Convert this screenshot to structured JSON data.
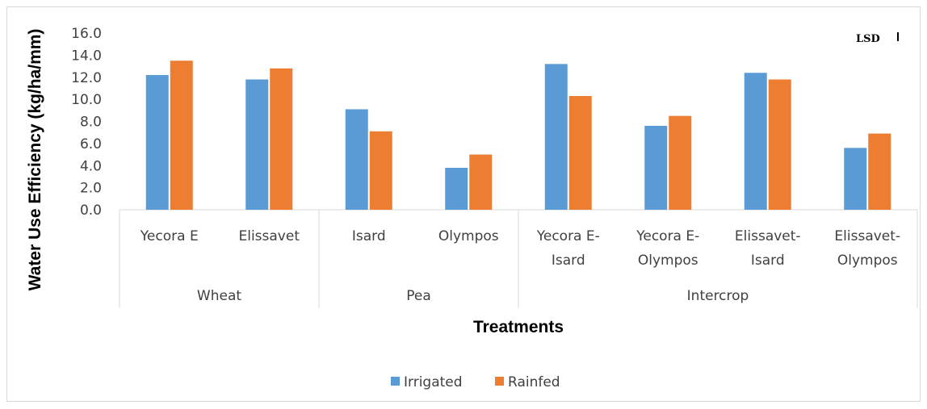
{
  "chart_data": {
    "type": "bar",
    "ylabel": "Water Use Efficiency (kg/ha/mm)",
    "xlabel": "Treatments",
    "ylim": [
      0,
      16
    ],
    "yticks": [
      "0.0",
      "2.0",
      "4.0",
      "6.0",
      "8.0",
      "10.0",
      "12.0",
      "14.0",
      "16.0"
    ],
    "groups": [
      {
        "name": "Wheat",
        "categories": [
          [
            "Yecora E"
          ],
          [
            "Elissavet"
          ]
        ]
      },
      {
        "name": "Pea",
        "categories": [
          [
            "Isard"
          ],
          [
            "Olympos"
          ]
        ]
      },
      {
        "name": "Intercrop",
        "categories": [
          [
            "Yecora E-",
            "Isard"
          ],
          [
            "Yecora E-",
            "Olympos"
          ],
          [
            "Elissavet-",
            "Isard"
          ],
          [
            "Elissavet-",
            "Olympos"
          ]
        ]
      }
    ],
    "series": [
      {
        "name": "Irrigated",
        "color": "#5b9bd5",
        "values": [
          12.2,
          11.8,
          9.1,
          3.8,
          13.2,
          7.6,
          12.4,
          5.6
        ]
      },
      {
        "name": "Rainfed",
        "color": "#ed7d31",
        "values": [
          13.5,
          12.8,
          7.1,
          5.0,
          10.3,
          8.5,
          11.8,
          6.9
        ]
      }
    ],
    "annotation": "LSD",
    "grid": false,
    "legend_position": "bottom"
  }
}
